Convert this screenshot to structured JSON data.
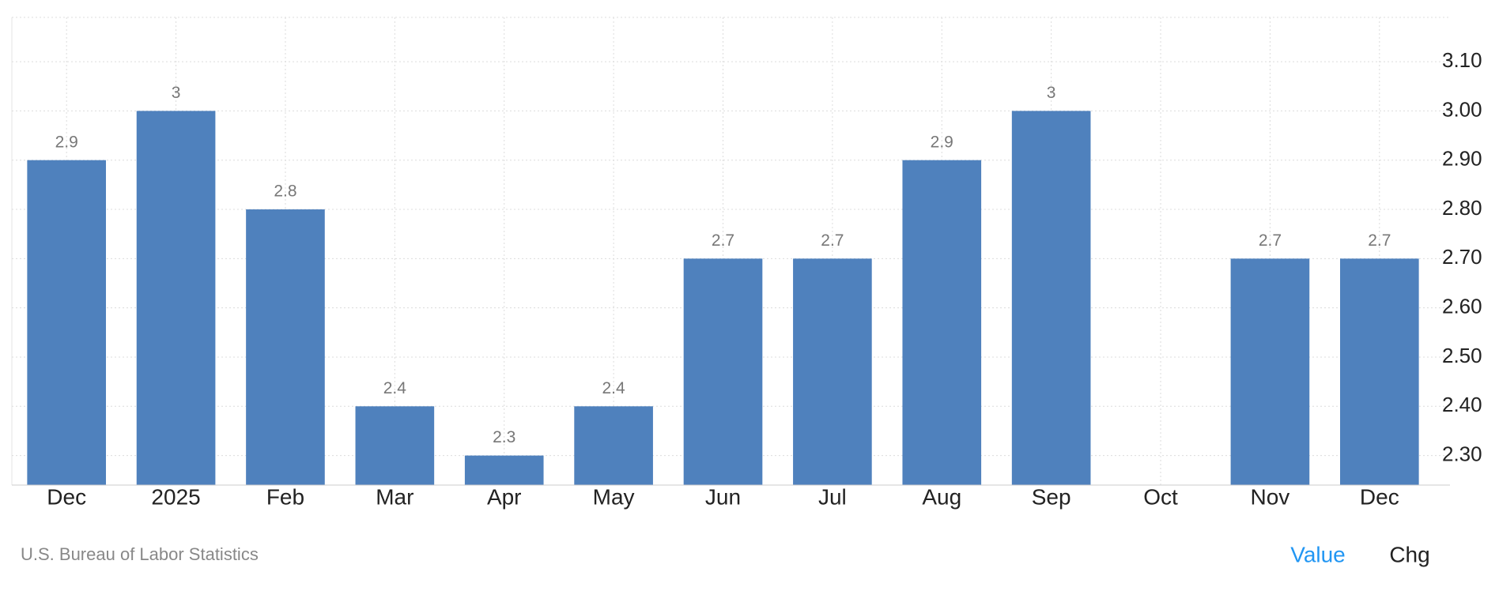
{
  "chart_data": {
    "type": "bar",
    "categories": [
      "Dec",
      "2025",
      "Feb",
      "Mar",
      "Apr",
      "May",
      "Jun",
      "Jul",
      "Aug",
      "Sep",
      "Oct",
      "Nov",
      "Dec"
    ],
    "values": [
      2.9,
      3,
      2.8,
      2.4,
      2.3,
      2.4,
      2.7,
      2.7,
      2.9,
      3,
      null,
      2.7,
      2.7
    ],
    "color": "#4f81bd",
    "ylim": [
      2.24,
      3.19
    ],
    "yticks": [
      {
        "value": 2.3,
        "label": "2.30"
      },
      {
        "value": 2.4,
        "label": "2.40"
      },
      {
        "value": 2.5,
        "label": "2.50"
      },
      {
        "value": 2.6,
        "label": "2.60"
      },
      {
        "value": 2.7,
        "label": "2.70"
      },
      {
        "value": 2.8,
        "label": "2.80"
      },
      {
        "value": 2.9,
        "label": "2.90"
      },
      {
        "value": 3.0,
        "label": "3.00"
      },
      {
        "value": 3.1,
        "label": "3.10"
      }
    ],
    "grid": true,
    "source": "U.S. Bureau of Labor Statistics",
    "buttons": [
      "Value",
      "Chg"
    ]
  }
}
